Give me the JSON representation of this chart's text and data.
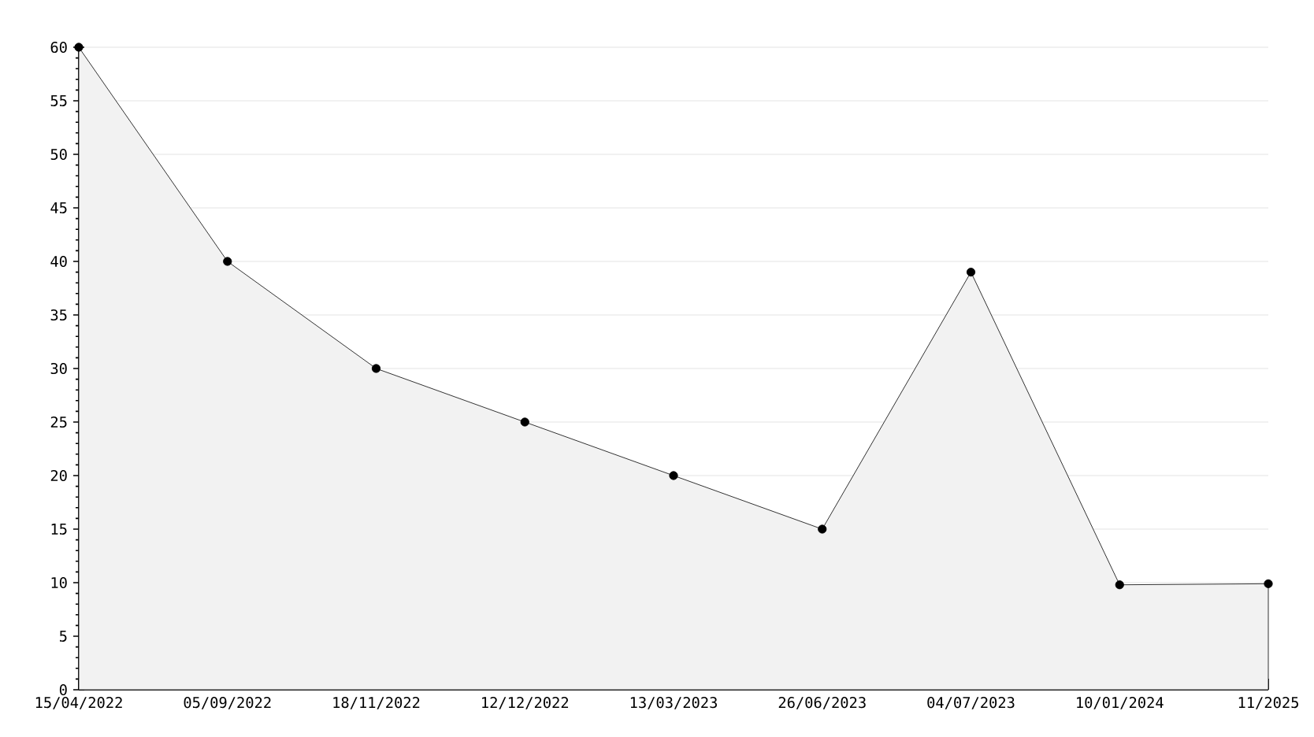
{
  "chart_data": {
    "type": "area",
    "categories": [
      "15/04/2022",
      "05/09/2022",
      "18/11/2022",
      "12/12/2022",
      "13/03/2023",
      "26/06/2023",
      "04/07/2023",
      "10/01/2024",
      "11/2025"
    ],
    "values": [
      60,
      40,
      30,
      25,
      20,
      15,
      39,
      9.8,
      9.9
    ],
    "color": "#000000",
    "marker": "circle",
    "grid": "y",
    "ylim": [
      0,
      60
    ],
    "yticks": [
      0,
      5,
      10,
      15,
      20,
      25,
      30,
      35,
      40,
      45,
      50,
      55,
      60
    ]
  }
}
